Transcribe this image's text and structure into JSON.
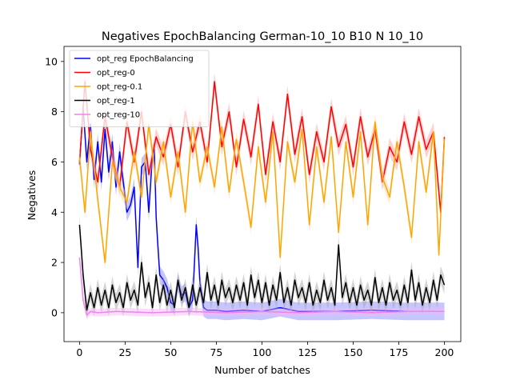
{
  "chart_data": {
    "type": "line",
    "title": "Negatives EpochBalancing German-10_10 B10 N 10_10",
    "xlabel": "Number of batches",
    "ylabel": "Negatives",
    "xlim": [
      -8.5,
      209
    ],
    "ylim": [
      -1.15,
      10.6
    ],
    "xticks": [
      0,
      25,
      50,
      75,
      100,
      125,
      150,
      175,
      200
    ],
    "yticks": [
      0,
      2,
      4,
      6,
      8,
      10
    ],
    "grid": false,
    "legend_position": "top-left",
    "x_start": 0,
    "x_end": 200,
    "x_step": 1,
    "series": [
      {
        "name": "opt_reg EpochBalancing",
        "color": "#0000ff",
        "band_color": "#8080ff",
        "keypoints": [
          [
            0,
            5.9
          ],
          [
            2,
            8.2
          ],
          [
            4,
            6.0
          ],
          [
            6,
            7.5
          ],
          [
            8,
            5.3
          ],
          [
            10,
            6.8
          ],
          [
            12,
            5.2
          ],
          [
            14,
            7.3
          ],
          [
            16,
            5.6
          ],
          [
            18,
            6.8
          ],
          [
            20,
            5.0
          ],
          [
            22,
            6.4
          ],
          [
            24,
            5.2
          ],
          [
            26,
            4.0
          ],
          [
            28,
            4.3
          ],
          [
            30,
            5.0
          ],
          [
            32,
            1.8
          ],
          [
            34,
            5.8
          ],
          [
            36,
            6.0
          ],
          [
            38,
            4.0
          ],
          [
            40,
            6.3
          ],
          [
            41,
            6.5
          ],
          [
            42,
            3.8
          ],
          [
            44,
            1.5
          ],
          [
            46,
            1.3
          ],
          [
            48,
            1.0
          ],
          [
            50,
            0.4
          ],
          [
            52,
            0.3
          ],
          [
            54,
            1.2
          ],
          [
            56,
            0.7
          ],
          [
            58,
            0.8
          ],
          [
            60,
            0.2
          ],
          [
            62,
            0.5
          ],
          [
            64,
            3.5
          ],
          [
            65,
            2.6
          ],
          [
            66,
            1.2
          ],
          [
            68,
            0.2
          ],
          [
            70,
            0.1
          ],
          [
            75,
            0.1
          ],
          [
            80,
            0.05
          ],
          [
            90,
            0.1
          ],
          [
            100,
            0.05
          ],
          [
            110,
            0.2
          ],
          [
            120,
            0.05
          ],
          [
            140,
            0.05
          ],
          [
            160,
            0.1
          ],
          [
            180,
            0.05
          ],
          [
            200,
            0.05
          ]
        ],
        "band": 0.35
      },
      {
        "name": "opt_reg-0",
        "color": "#ff0000",
        "band_color": "#ff9a9a",
        "keypoints": [
          [
            0,
            6.0
          ],
          [
            3,
            9.2
          ],
          [
            6,
            6.5
          ],
          [
            10,
            5.2
          ],
          [
            14,
            7.8
          ],
          [
            18,
            6.2
          ],
          [
            22,
            5.0
          ],
          [
            26,
            7.6
          ],
          [
            30,
            6.0
          ],
          [
            34,
            8.0
          ],
          [
            38,
            5.5
          ],
          [
            42,
            7.0
          ],
          [
            46,
            6.2
          ],
          [
            50,
            7.5
          ],
          [
            54,
            5.8
          ],
          [
            58,
            8.0
          ],
          [
            62,
            6.4
          ],
          [
            66,
            7.6
          ],
          [
            70,
            6.0
          ],
          [
            74,
            9.2
          ],
          [
            78,
            6.6
          ],
          [
            82,
            8.0
          ],
          [
            86,
            5.8
          ],
          [
            90,
            7.7
          ],
          [
            94,
            6.2
          ],
          [
            98,
            8.3
          ],
          [
            102,
            5.5
          ],
          [
            106,
            7.6
          ],
          [
            110,
            6.0
          ],
          [
            114,
            8.7
          ],
          [
            118,
            6.3
          ],
          [
            122,
            7.8
          ],
          [
            126,
            5.5
          ],
          [
            130,
            7.2
          ],
          [
            134,
            6.0
          ],
          [
            138,
            8.2
          ],
          [
            142,
            6.6
          ],
          [
            146,
            7.5
          ],
          [
            150,
            5.8
          ],
          [
            154,
            7.8
          ],
          [
            158,
            6.2
          ],
          [
            162,
            7.3
          ],
          [
            166,
            5.2
          ],
          [
            170,
            6.6
          ],
          [
            174,
            6.0
          ],
          [
            178,
            7.6
          ],
          [
            182,
            6.3
          ],
          [
            186,
            7.8
          ],
          [
            190,
            6.5
          ],
          [
            194,
            7.2
          ],
          [
            198,
            4.0
          ],
          [
            200,
            7.0
          ]
        ],
        "band": 0.35
      },
      {
        "name": "opt_reg-0.1",
        "color": "#ffa500",
        "band_color": "#ffd699",
        "keypoints": [
          [
            0,
            6.2
          ],
          [
            3,
            4.0
          ],
          [
            6,
            7.2
          ],
          [
            10,
            4.5
          ],
          [
            14,
            2.0
          ],
          [
            18,
            6.0
          ],
          [
            22,
            5.0
          ],
          [
            26,
            4.4
          ],
          [
            30,
            6.4
          ],
          [
            34,
            4.6
          ],
          [
            38,
            7.5
          ],
          [
            42,
            5.2
          ],
          [
            46,
            6.8
          ],
          [
            50,
            4.6
          ],
          [
            54,
            6.4
          ],
          [
            58,
            4.0
          ],
          [
            62,
            7.6
          ],
          [
            66,
            5.2
          ],
          [
            70,
            6.6
          ],
          [
            74,
            5.0
          ],
          [
            78,
            7.4
          ],
          [
            82,
            4.8
          ],
          [
            86,
            6.9
          ],
          [
            90,
            5.2
          ],
          [
            94,
            3.4
          ],
          [
            98,
            6.6
          ],
          [
            102,
            4.4
          ],
          [
            106,
            7.2
          ],
          [
            110,
            2.2
          ],
          [
            114,
            6.8
          ],
          [
            118,
            5.2
          ],
          [
            122,
            7.3
          ],
          [
            126,
            3.5
          ],
          [
            130,
            6.6
          ],
          [
            134,
            4.4
          ],
          [
            138,
            7.0
          ],
          [
            142,
            3.2
          ],
          [
            146,
            6.8
          ],
          [
            150,
            4.6
          ],
          [
            154,
            7.2
          ],
          [
            158,
            3.5
          ],
          [
            162,
            7.6
          ],
          [
            166,
            5.4
          ],
          [
            170,
            4.6
          ],
          [
            174,
            6.8
          ],
          [
            178,
            5.0
          ],
          [
            182,
            3.0
          ],
          [
            186,
            6.8
          ],
          [
            190,
            4.8
          ],
          [
            194,
            7.2
          ],
          [
            197,
            2.3
          ],
          [
            200,
            6.9
          ]
        ],
        "band": 0.3
      },
      {
        "name": "opt_reg-1",
        "color": "#000000",
        "band_color": "#a0a0a0",
        "keypoints": [
          [
            0,
            3.5
          ],
          [
            2,
            1.5
          ],
          [
            4,
            0.1
          ],
          [
            6,
            0.8
          ],
          [
            8,
            0.2
          ],
          [
            10,
            1.0
          ],
          [
            12,
            0.3
          ],
          [
            14,
            0.9
          ],
          [
            16,
            0.2
          ],
          [
            18,
            1.1
          ],
          [
            20,
            0.4
          ],
          [
            22,
            0.8
          ],
          [
            24,
            0.2
          ],
          [
            26,
            1.2
          ],
          [
            28,
            0.5
          ],
          [
            30,
            0.9
          ],
          [
            32,
            0.3
          ],
          [
            34,
            2.0
          ],
          [
            36,
            0.6
          ],
          [
            38,
            1.2
          ],
          [
            40,
            0.2
          ],
          [
            42,
            1.5
          ],
          [
            44,
            0.4
          ],
          [
            46,
            1.1
          ],
          [
            48,
            0.3
          ],
          [
            50,
            0.9
          ],
          [
            52,
            0.2
          ],
          [
            54,
            1.3
          ],
          [
            56,
            0.5
          ],
          [
            58,
            1.0
          ],
          [
            60,
            0.2
          ],
          [
            62,
            1.1
          ],
          [
            64,
            0.3
          ],
          [
            66,
            1.0
          ],
          [
            68,
            0.4
          ],
          [
            70,
            1.6
          ],
          [
            72,
            0.5
          ],
          [
            74,
            1.1
          ],
          [
            76,
            0.3
          ],
          [
            78,
            1.3
          ],
          [
            80,
            0.6
          ],
          [
            82,
            1.0
          ],
          [
            84,
            0.4
          ],
          [
            86,
            1.1
          ],
          [
            88,
            0.5
          ],
          [
            90,
            1.2
          ],
          [
            92,
            0.3
          ],
          [
            94,
            1.5
          ],
          [
            96,
            0.6
          ],
          [
            98,
            1.3
          ],
          [
            100,
            0.4
          ],
          [
            102,
            1.2
          ],
          [
            104,
            0.3
          ],
          [
            106,
            1.1
          ],
          [
            108,
            0.5
          ],
          [
            110,
            1.6
          ],
          [
            112,
            0.4
          ],
          [
            114,
            1.0
          ],
          [
            116,
            0.3
          ],
          [
            118,
            1.3
          ],
          [
            120,
            0.6
          ],
          [
            122,
            1.0
          ],
          [
            124,
            0.4
          ],
          [
            126,
            1.2
          ],
          [
            128,
            0.3
          ],
          [
            130,
            0.9
          ],
          [
            132,
            0.4
          ],
          [
            134,
            1.3
          ],
          [
            136,
            0.5
          ],
          [
            138,
            1.0
          ],
          [
            140,
            0.3
          ],
          [
            142,
            2.7
          ],
          [
            144,
            0.6
          ],
          [
            146,
            1.2
          ],
          [
            148,
            0.4
          ],
          [
            150,
            1.0
          ],
          [
            152,
            0.3
          ],
          [
            154,
            1.1
          ],
          [
            156,
            0.5
          ],
          [
            158,
            0.9
          ],
          [
            160,
            0.3
          ],
          [
            162,
            1.4
          ],
          [
            164,
            0.4
          ],
          [
            166,
            1.0
          ],
          [
            168,
            0.3
          ],
          [
            170,
            1.2
          ],
          [
            172,
            0.5
          ],
          [
            174,
            0.9
          ],
          [
            176,
            0.3
          ],
          [
            178,
            1.1
          ],
          [
            180,
            0.4
          ],
          [
            182,
            1.7
          ],
          [
            184,
            0.5
          ],
          [
            186,
            1.2
          ],
          [
            188,
            0.3
          ],
          [
            190,
            1.0
          ],
          [
            192,
            0.4
          ],
          [
            194,
            1.3
          ],
          [
            196,
            0.5
          ],
          [
            198,
            1.5
          ],
          [
            200,
            1.1
          ]
        ],
        "band": 0.35
      },
      {
        "name": "opt_reg-10",
        "color": "#ee82ee",
        "band_color": "#f4b3f4",
        "keypoints": [
          [
            0,
            2.2
          ],
          [
            2,
            0.5
          ],
          [
            4,
            -0.1
          ],
          [
            6,
            0.05
          ],
          [
            10,
            0.0
          ],
          [
            20,
            0.05
          ],
          [
            40,
            0.0
          ],
          [
            60,
            0.05
          ],
          [
            80,
            0.0
          ],
          [
            100,
            0.05
          ],
          [
            120,
            0.0
          ],
          [
            140,
            0.05
          ],
          [
            160,
            0.0
          ],
          [
            180,
            0.05
          ],
          [
            200,
            0.05
          ]
        ],
        "band": 0.15
      }
    ]
  }
}
